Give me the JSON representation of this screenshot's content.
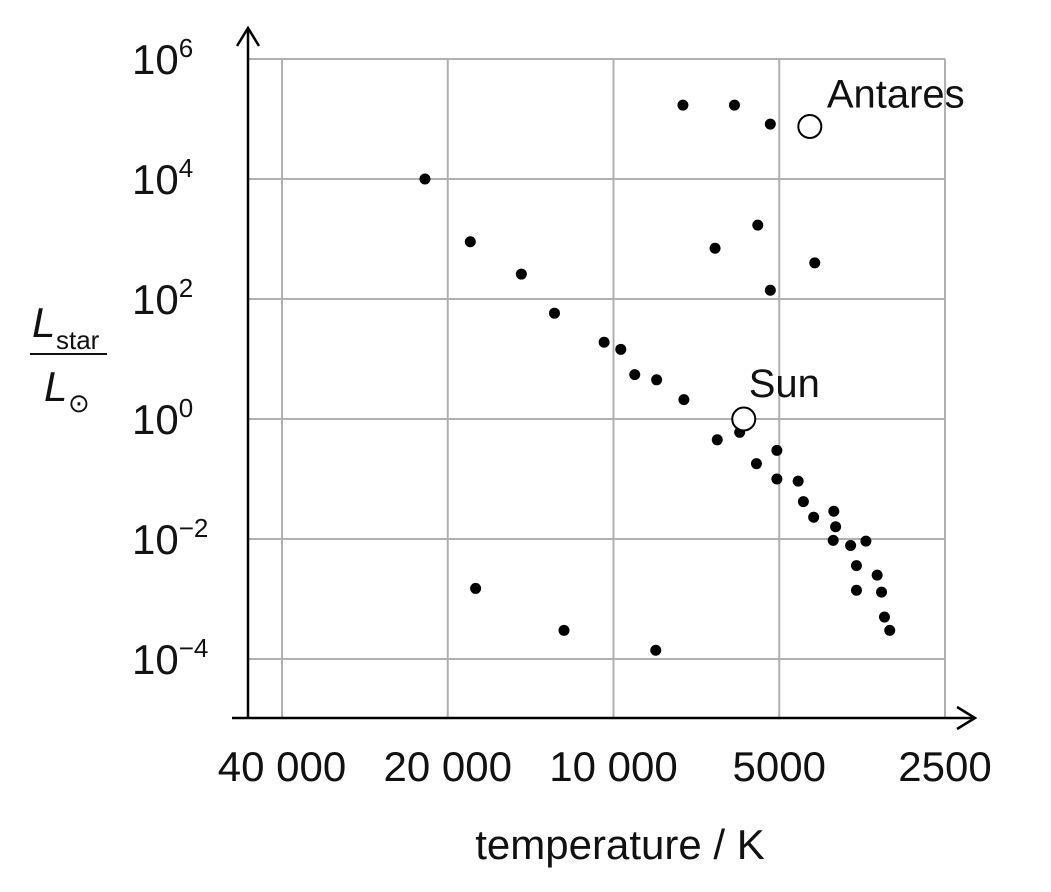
{
  "chart_data": {
    "type": "scatter",
    "title": "",
    "xlabel": "temperature / K",
    "ylabel": {
      "numerator_symbol": "L",
      "numerator_subscript": "star",
      "denominator_symbol": "L",
      "denominator_subscript": "⊙"
    },
    "x_scale": "log",
    "x_reversed": true,
    "y_scale": "log",
    "xlim": [
      40000,
      2500
    ],
    "ylim": [
      1e-05,
      1000000
    ],
    "grid": true,
    "x_ticks": [
      {
        "value": 40000,
        "label": "40 000"
      },
      {
        "value": 20000,
        "label": "20 000"
      },
      {
        "value": 10000,
        "label": "10 000"
      },
      {
        "value": 5000,
        "label": "5000"
      },
      {
        "value": 2500,
        "label": "2500"
      }
    ],
    "y_ticks": [
      {
        "value": 1000000,
        "base": "10",
        "exp": "6"
      },
      {
        "value": 10000,
        "base": "10",
        "exp": "4"
      },
      {
        "value": 100,
        "base": "10",
        "exp": "2"
      },
      {
        "value": 1,
        "base": "10",
        "exp": "0"
      },
      {
        "value": 0.01,
        "base": "10",
        "exp": "−2"
      },
      {
        "value": 0.0001,
        "base": "10",
        "exp": "−4"
      }
    ],
    "points": [
      {
        "x": 22000,
        "y": 10000
      },
      {
        "x": 18200,
        "y": 900
      },
      {
        "x": 14700,
        "y": 260
      },
      {
        "x": 12800,
        "y": 58
      },
      {
        "x": 10400,
        "y": 19
      },
      {
        "x": 9700,
        "y": 14.5
      },
      {
        "x": 9150,
        "y": 5.5
      },
      {
        "x": 8350,
        "y": 4.5
      },
      {
        "x": 7450,
        "y": 2.1
      },
      {
        "x": 6480,
        "y": 0.45
      },
      {
        "x": 5900,
        "y": 0.6
      },
      {
        "x": 5500,
        "y": 0.18
      },
      {
        "x": 5050,
        "y": 0.3
      },
      {
        "x": 5050,
        "y": 0.1
      },
      {
        "x": 4620,
        "y": 0.092
      },
      {
        "x": 4520,
        "y": 0.042
      },
      {
        "x": 4330,
        "y": 0.023
      },
      {
        "x": 3980,
        "y": 0.029
      },
      {
        "x": 3950,
        "y": 0.016
      },
      {
        "x": 3990,
        "y": 0.0095
      },
      {
        "x": 3710,
        "y": 0.0078
      },
      {
        "x": 3480,
        "y": 0.0092
      },
      {
        "x": 3620,
        "y": 0.0036
      },
      {
        "x": 3320,
        "y": 0.0025
      },
      {
        "x": 3620,
        "y": 0.0014
      },
      {
        "x": 3260,
        "y": 0.0013
      },
      {
        "x": 3220,
        "y": 0.0005
      },
      {
        "x": 3150,
        "y": 0.0003
      },
      {
        "x": 17800,
        "y": 0.0015
      },
      {
        "x": 12300,
        "y": 0.0003
      },
      {
        "x": 8380,
        "y": 0.00014
      },
      {
        "x": 7480,
        "y": 170000
      },
      {
        "x": 6030,
        "y": 170000
      },
      {
        "x": 6540,
        "y": 700
      },
      {
        "x": 5470,
        "y": 1700
      },
      {
        "x": 5190,
        "y": 82000
      },
      {
        "x": 5190,
        "y": 140
      },
      {
        "x": 4310,
        "y": 400
      }
    ],
    "annotations": [
      {
        "label": "Sun",
        "x": 5800,
        "y": 1
      },
      {
        "label": "Antares",
        "x": 4400,
        "y": 75000
      }
    ]
  }
}
